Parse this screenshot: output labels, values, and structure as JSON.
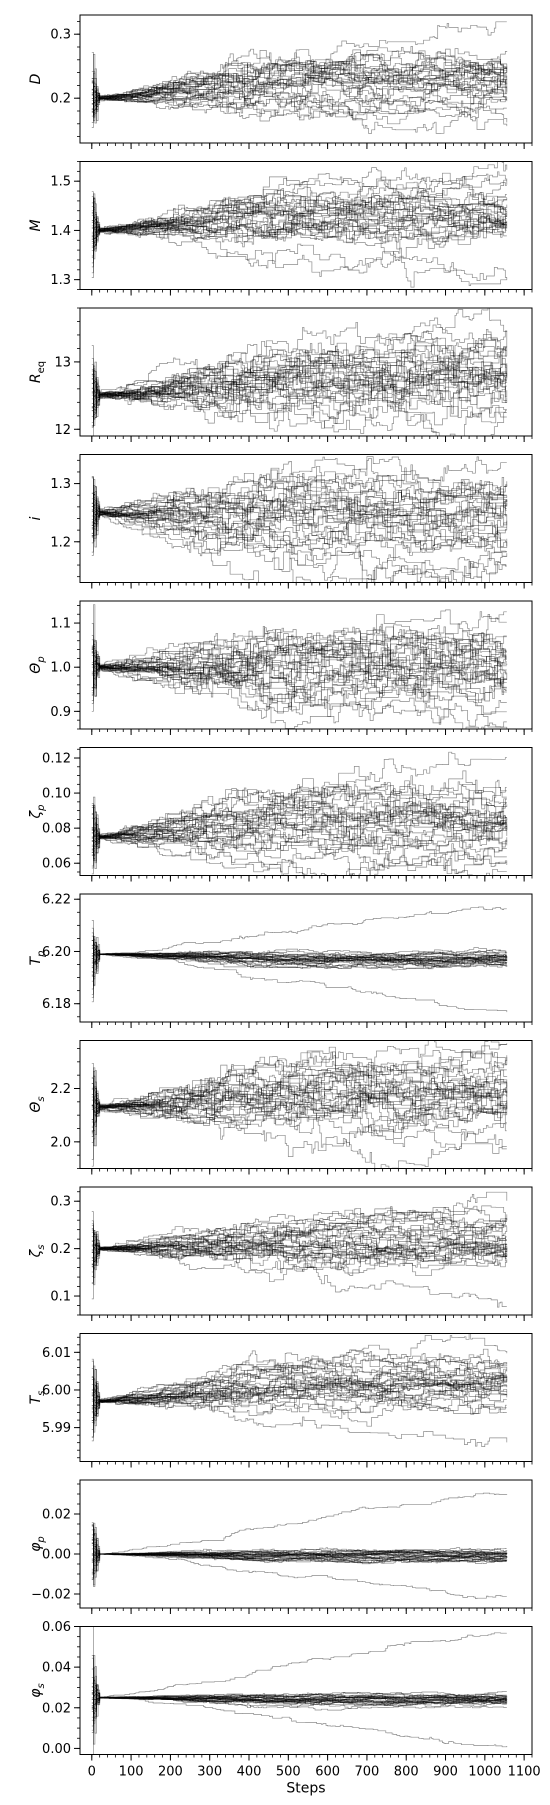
{
  "chart_data": {
    "type": "line",
    "description_count": 12,
    "x_axis": {
      "label": "Steps",
      "range": [
        -30,
        1120
      ],
      "ticks": [
        0,
        100,
        200,
        300,
        400,
        500,
        600,
        700,
        800,
        900,
        1000,
        1100
      ],
      "tick_labels": [
        "0",
        "100",
        "200",
        "300",
        "400",
        "500",
        "600",
        "700",
        "800",
        "900",
        "1000",
        "1100"
      ],
      "minor_step": 20
    },
    "series_style": {
      "color": "#000000",
      "opacity": 0.45,
      "walkers": 32,
      "steps": 1060
    },
    "panels": [
      {
        "ylabel": "D",
        "ylim": [
          0.13,
          0.33
        ],
        "yticks": [
          0.2,
          0.3
        ],
        "ytick_labels": [
          "0.2",
          "0.3"
        ],
        "minor_step": 0.02,
        "start": 0.2,
        "end_mean": 0.225,
        "end_spread": 0.025,
        "final_max": 0.32,
        "final_min": 0.15
      },
      {
        "ylabel": "M",
        "ylim": [
          1.28,
          1.54
        ],
        "yticks": [
          1.3,
          1.4,
          1.5
        ],
        "ytick_labels": [
          "1.3",
          "1.4",
          "1.5"
        ],
        "minor_step": 0.02,
        "start": 1.4,
        "end_mean": 1.42,
        "end_spread": 0.035,
        "final_max": 1.52,
        "final_min": 1.31
      },
      {
        "ylabel": "Req",
        "ylim": [
          11.9,
          13.8
        ],
        "yticks": [
          12,
          13
        ],
        "ytick_labels": [
          "12",
          "13"
        ],
        "minor_step": 0.2,
        "start": 12.5,
        "end_mean": 12.7,
        "end_spread": 0.35,
        "final_max": 13.7,
        "final_min": 11.95
      },
      {
        "ylabel": "i",
        "ylim": [
          1.13,
          1.35
        ],
        "yticks": [
          1.2,
          1.3
        ],
        "ytick_labels": [
          "1.2",
          "1.3"
        ],
        "minor_step": 0.02,
        "start": 1.25,
        "end_mean": 1.25,
        "end_spread": 0.04,
        "final_max": 1.33,
        "final_min": 1.15
      },
      {
        "ylabel": "Θp",
        "ylim": [
          0.86,
          1.15
        ],
        "yticks": [
          0.9,
          1.0,
          1.1
        ],
        "ytick_labels": [
          "0.9",
          "1.0",
          "1.1"
        ],
        "minor_step": 0.02,
        "start": 1.0,
        "end_mean": 1.0,
        "end_spread": 0.055,
        "final_max": 1.13,
        "final_min": 0.87
      },
      {
        "ylabel": "ζp",
        "ylim": [
          0.053,
          0.126
        ],
        "yticks": [
          0.06,
          0.08,
          0.1,
          0.12
        ],
        "ytick_labels": [
          "0.06",
          "0.08",
          "0.10",
          "0.12"
        ],
        "minor_step": 0.005,
        "start": 0.075,
        "end_mean": 0.083,
        "end_spread": 0.011,
        "final_max": 0.123,
        "final_min": 0.058
      },
      {
        "ylabel": "Tp",
        "ylim": [
          6.173,
          6.222
        ],
        "yticks": [
          6.18,
          6.2,
          6.22
        ],
        "ytick_labels": [
          "6.18",
          "6.20",
          "6.22"
        ],
        "minor_step": 0.005,
        "start": 6.199,
        "end_mean": 6.197,
        "end_spread": 0.0015,
        "final_max": 6.218,
        "final_min": 6.176
      },
      {
        "ylabel": "Θs",
        "ylim": [
          1.9,
          2.38
        ],
        "yticks": [
          2.0,
          2.2
        ],
        "ytick_labels": [
          "2.0",
          "2.2"
        ],
        "minor_step": 0.05,
        "start": 2.13,
        "end_mean": 2.17,
        "end_spread": 0.08,
        "final_max": 2.36,
        "final_min": 1.92
      },
      {
        "ylabel": "ζs",
        "ylim": [
          0.06,
          0.33
        ],
        "yticks": [
          0.1,
          0.2,
          0.3
        ],
        "ytick_labels": [
          "0.1",
          "0.2",
          "0.3"
        ],
        "minor_step": 0.02,
        "start": 0.2,
        "end_mean": 0.22,
        "end_spread": 0.03,
        "final_max": 0.31,
        "final_min": 0.08
      },
      {
        "ylabel": "Ts",
        "ylim": [
          5.981,
          6.015
        ],
        "yticks": [
          5.99,
          6.0,
          6.01
        ],
        "ytick_labels": [
          "5.99",
          "6.00",
          "6.01"
        ],
        "minor_step": 0.002,
        "start": 5.997,
        "end_mean": 6.002,
        "end_spread": 0.0035,
        "final_max": 6.014,
        "final_min": 5.983
      },
      {
        "ylabel": "φp",
        "ylim": [
          -0.027,
          0.037
        ],
        "yticks": [
          -0.02,
          0.0,
          0.02
        ],
        "ytick_labels": [
          "−0.02",
          "0.00",
          "0.02"
        ],
        "minor_step": 0.005,
        "start": 0.0,
        "end_mean": -0.001,
        "end_spread": 0.0015,
        "final_max": 0.033,
        "final_min": -0.022
      },
      {
        "ylabel": "φs",
        "ylim": [
          -0.003,
          0.06
        ],
        "yticks": [
          0.0,
          0.02,
          0.04,
          0.06
        ],
        "ytick_labels": [
          "0.00",
          "0.02",
          "0.04",
          "0.06"
        ],
        "minor_step": 0.005,
        "start": 0.025,
        "end_mean": 0.024,
        "end_spread": 0.0015,
        "final_max": 0.058,
        "final_min": 0.001
      }
    ]
  }
}
